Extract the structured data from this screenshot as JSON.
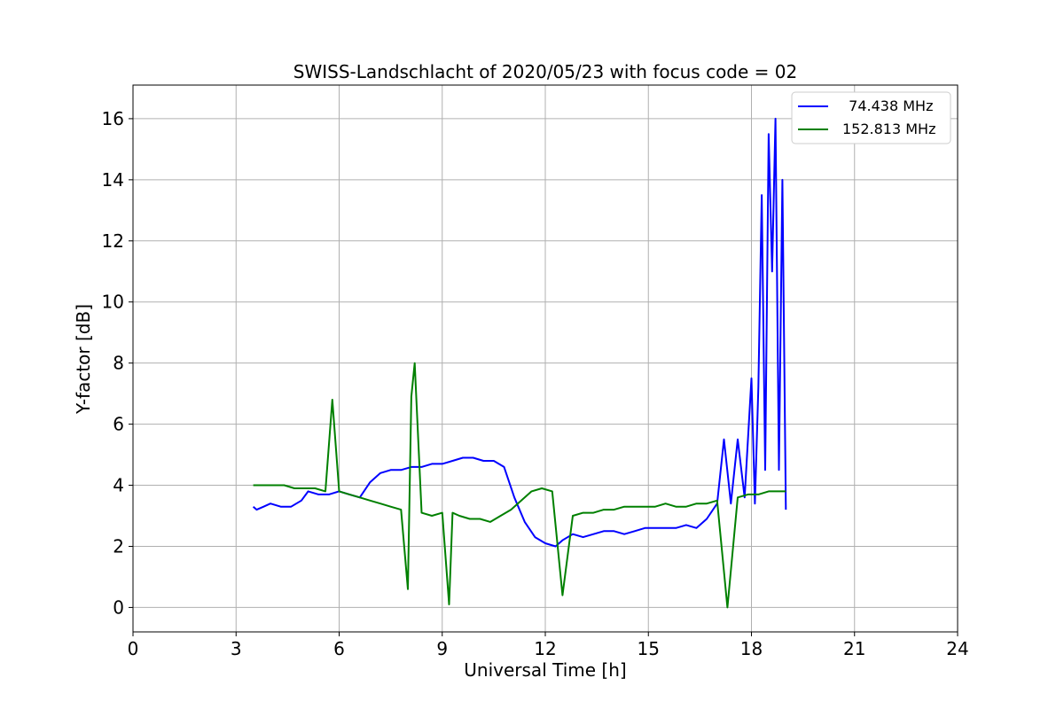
{
  "chart_data": {
    "type": "line",
    "title": "SWISS-Landschlacht of 2020/05/23 with focus code = 02",
    "xlabel": "Universal Time [h]",
    "ylabel": "Y-factor [dB]",
    "xlim": [
      0,
      24
    ],
    "ylim": [
      -0.8,
      17.1
    ],
    "xticks": [
      0,
      3,
      6,
      9,
      12,
      15,
      18,
      21,
      24
    ],
    "yticks": [
      0,
      2,
      4,
      6,
      8,
      10,
      12,
      14,
      16
    ],
    "grid": true,
    "legend_position": "top-right",
    "series": [
      {
        "name": "  74.438 MHz",
        "color": "#0000ff",
        "x": [
          3.5,
          3.6,
          3.8,
          4.0,
          4.3,
          4.6,
          4.9,
          5.1,
          5.4,
          5.7,
          6.0,
          6.3,
          6.6,
          6.9,
          7.2,
          7.5,
          7.8,
          8.1,
          8.4,
          8.7,
          9.0,
          9.3,
          9.6,
          9.9,
          10.2,
          10.5,
          10.8,
          11.1,
          11.4,
          11.7,
          12.0,
          12.3,
          12.5,
          12.8,
          13.1,
          13.4,
          13.7,
          14.0,
          14.3,
          14.6,
          14.9,
          15.2,
          15.5,
          15.8,
          16.1,
          16.4,
          16.7,
          17.0,
          17.2,
          17.4,
          17.6,
          17.8,
          18.0,
          18.1,
          18.2,
          18.3,
          18.4,
          18.5,
          18.6,
          18.7,
          18.8,
          18.9,
          19.0
        ],
        "y": [
          3.3,
          3.2,
          3.3,
          3.4,
          3.3,
          3.3,
          3.5,
          3.8,
          3.7,
          3.7,
          3.8,
          3.7,
          3.6,
          4.1,
          4.4,
          4.5,
          4.5,
          4.6,
          4.6,
          4.7,
          4.7,
          4.8,
          4.9,
          4.9,
          4.8,
          4.8,
          4.6,
          3.6,
          2.8,
          2.3,
          2.1,
          2.0,
          2.2,
          2.4,
          2.3,
          2.4,
          2.5,
          2.5,
          2.4,
          2.5,
          2.6,
          2.6,
          2.6,
          2.6,
          2.7,
          2.6,
          2.9,
          3.4,
          5.5,
          3.4,
          5.5,
          3.6,
          7.5,
          3.4,
          7.2,
          13.5,
          4.5,
          15.5,
          11.0,
          16.0,
          4.5,
          14.0,
          3.2
        ]
      },
      {
        "name": "152.813 MHz",
        "color": "#008000",
        "x": [
          3.5,
          3.8,
          4.1,
          4.4,
          4.7,
          5.0,
          5.3,
          5.6,
          5.8,
          6.0,
          6.3,
          6.6,
          6.9,
          7.2,
          7.5,
          7.8,
          8.0,
          8.1,
          8.2,
          8.4,
          8.7,
          9.0,
          9.2,
          9.3,
          9.5,
          9.8,
          10.1,
          10.4,
          10.7,
          11.0,
          11.3,
          11.6,
          11.9,
          12.2,
          12.5,
          12.8,
          13.1,
          13.4,
          13.7,
          14.0,
          14.3,
          14.6,
          14.9,
          15.2,
          15.5,
          15.8,
          16.1,
          16.4,
          16.7,
          17.0,
          17.3,
          17.6,
          17.9,
          18.2,
          18.5,
          18.8,
          19.0
        ],
        "y": [
          4.0,
          4.0,
          4.0,
          4.0,
          3.9,
          3.9,
          3.9,
          3.8,
          6.8,
          3.8,
          3.7,
          3.6,
          3.5,
          3.4,
          3.3,
          3.2,
          0.6,
          6.9,
          8.0,
          3.1,
          3.0,
          3.1,
          0.1,
          3.1,
          3.0,
          2.9,
          2.9,
          2.8,
          3.0,
          3.2,
          3.5,
          3.8,
          3.9,
          3.8,
          0.4,
          3.0,
          3.1,
          3.1,
          3.2,
          3.2,
          3.3,
          3.3,
          3.3,
          3.3,
          3.4,
          3.3,
          3.3,
          3.4,
          3.4,
          3.5,
          0.0,
          3.6,
          3.7,
          3.7,
          3.8,
          3.8,
          3.8
        ]
      }
    ]
  }
}
